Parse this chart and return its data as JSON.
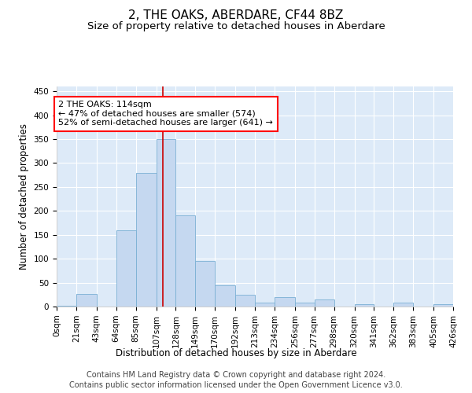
{
  "title": "2, THE OAKS, ABERDARE, CF44 8BZ",
  "subtitle": "Size of property relative to detached houses in Aberdare",
  "xlabel": "Distribution of detached houses by size in Aberdare",
  "ylabel": "Number of detached properties",
  "footer_line1": "Contains HM Land Registry data © Crown copyright and database right 2024.",
  "footer_line2": "Contains public sector information licensed under the Open Government Licence v3.0.",
  "annotation_line1": "2 THE OAKS: 114sqm",
  "annotation_line2": "← 47% of detached houses are smaller (574)",
  "annotation_line3": "52% of semi-detached houses are larger (641) →",
  "property_size": 114,
  "bin_edges": [
    0,
    21,
    43,
    64,
    85,
    107,
    128,
    149,
    170,
    192,
    213,
    234,
    256,
    277,
    298,
    320,
    341,
    362,
    383,
    405,
    426
  ],
  "bar_heights": [
    2,
    27,
    0,
    160,
    280,
    350,
    190,
    95,
    45,
    25,
    8,
    20,
    8,
    14,
    0,
    5,
    0,
    8,
    0,
    5
  ],
  "bar_color": "#c5d8f0",
  "bar_edge_color": "#7aafd4",
  "vline_color": "#cc0000",
  "vline_x": 114,
  "ylim": [
    0,
    460
  ],
  "yticks": [
    0,
    50,
    100,
    150,
    200,
    250,
    300,
    350,
    400,
    450
  ],
  "background_color": "#ffffff",
  "plot_bg_color": "#ddeaf8",
  "grid_color": "#ffffff",
  "title_fontsize": 11,
  "subtitle_fontsize": 9.5,
  "axis_label_fontsize": 8.5,
  "tick_fontsize": 7.5,
  "annotation_fontsize": 8,
  "footer_fontsize": 7
}
